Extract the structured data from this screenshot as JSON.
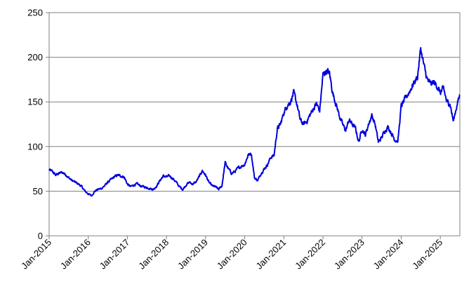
{
  "chart_data": {
    "type": "line",
    "title": "",
    "xlabel": "",
    "ylabel": "",
    "ylim": [
      0,
      250
    ],
    "xlim": [
      "2015-01",
      "2025-07"
    ],
    "grid": {
      "horizontal": true,
      "vertical": false
    },
    "legend": "none",
    "y_ticks": [
      0,
      50,
      100,
      150,
      200,
      250
    ],
    "y_tick_labels": [
      "0",
      "50",
      "100",
      "150",
      "200",
      "250"
    ],
    "x_tick_labels": [
      "Jan-2015",
      "Jan-2016",
      "Jan-2017",
      "Jan-2018",
      "Jan-2019",
      "Jan-2020",
      "Jan-2021",
      "Jan-2022",
      "Jan-2023",
      "Jan-2024",
      "Jan-2025"
    ],
    "x_ticks": [
      "2015-01",
      "2016-01",
      "2017-01",
      "2018-01",
      "2019-01",
      "2020-01",
      "2021-01",
      "2022-01",
      "2023-01",
      "2024-01",
      "2025-01"
    ],
    "colors": {
      "line": "#0000dd",
      "grid": "#808080",
      "axis": "#808080"
    },
    "series": [
      {
        "x": [
          "2015-01",
          "2015-02",
          "2015-03",
          "2015-04",
          "2015-05",
          "2015-06",
          "2015-07",
          "2015-08",
          "2015-09",
          "2015-10",
          "2015-11",
          "2015-12",
          "2016-01",
          "2016-02",
          "2016-03",
          "2016-04",
          "2016-05",
          "2016-06",
          "2016-07",
          "2016-08",
          "2016-09",
          "2016-10",
          "2016-11",
          "2016-12",
          "2017-01",
          "2017-02",
          "2017-03",
          "2017-04",
          "2017-05",
          "2017-06",
          "2017-07",
          "2017-08",
          "2017-09",
          "2017-10",
          "2017-11",
          "2017-12",
          "2018-01",
          "2018-02",
          "2018-03",
          "2018-04",
          "2018-05",
          "2018-06",
          "2018-07",
          "2018-08",
          "2018-09",
          "2018-10",
          "2018-11",
          "2018-12",
          "2019-01",
          "2019-02",
          "2019-03",
          "2019-04",
          "2019-05",
          "2019-06",
          "2019-07",
          "2019-08",
          "2019-09",
          "2019-10",
          "2019-11",
          "2019-12",
          "2020-01",
          "2020-02",
          "2020-03",
          "2020-04",
          "2020-05",
          "2020-06",
          "2020-07",
          "2020-08",
          "2020-09",
          "2020-10",
          "2020-11",
          "2020-12",
          "2021-01",
          "2021-02",
          "2021-03",
          "2021-04",
          "2021-05",
          "2021-06",
          "2021-07",
          "2021-08",
          "2021-09",
          "2021-10",
          "2021-11",
          "2021-12",
          "2022-01",
          "2022-02",
          "2022-03",
          "2022-04",
          "2022-05",
          "2022-06",
          "2022-07",
          "2022-08",
          "2022-09",
          "2022-10",
          "2022-11",
          "2022-12",
          "2023-01",
          "2023-02",
          "2023-03",
          "2023-04",
          "2023-05",
          "2023-06",
          "2023-07",
          "2023-08",
          "2023-09",
          "2023-10",
          "2023-11",
          "2023-12",
          "2024-01",
          "2024-02",
          "2024-03",
          "2024-04",
          "2024-05",
          "2024-06",
          "2024-07",
          "2024-08",
          "2024-09",
          "2024-10",
          "2024-11",
          "2024-12",
          "2025-01",
          "2025-02",
          "2025-03",
          "2025-04",
          "2025-05",
          "2025-06",
          "2025-07"
        ],
        "values": [
          74,
          72,
          68,
          70,
          71,
          69,
          65,
          62,
          60,
          58,
          55,
          50,
          47,
          45,
          50,
          52,
          53,
          56,
          60,
          63,
          66,
          68,
          67,
          66,
          58,
          55,
          57,
          58,
          56,
          55,
          54,
          53,
          52,
          56,
          62,
          67,
          66,
          67,
          64,
          60,
          55,
          52,
          57,
          60,
          58,
          60,
          66,
          73,
          68,
          60,
          56,
          55,
          52,
          56,
          82,
          75,
          70,
          72,
          76,
          78,
          80,
          90,
          93,
          65,
          62,
          70,
          75,
          80,
          88,
          90,
          120,
          125,
          138,
          146,
          150,
          160,
          148,
          130,
          125,
          128,
          135,
          142,
          148,
          140,
          180,
          185,
          182,
          160,
          148,
          135,
          125,
          118,
          130,
          125,
          120,
          105,
          120,
          113,
          125,
          135,
          125,
          105,
          110,
          118,
          122,
          115,
          108,
          106,
          145,
          152,
          158,
          165,
          172,
          178,
          210,
          190,
          175,
          170,
          172,
          168,
          160,
          165,
          150,
          148,
          128,
          145,
          158
        ]
      }
    ]
  }
}
